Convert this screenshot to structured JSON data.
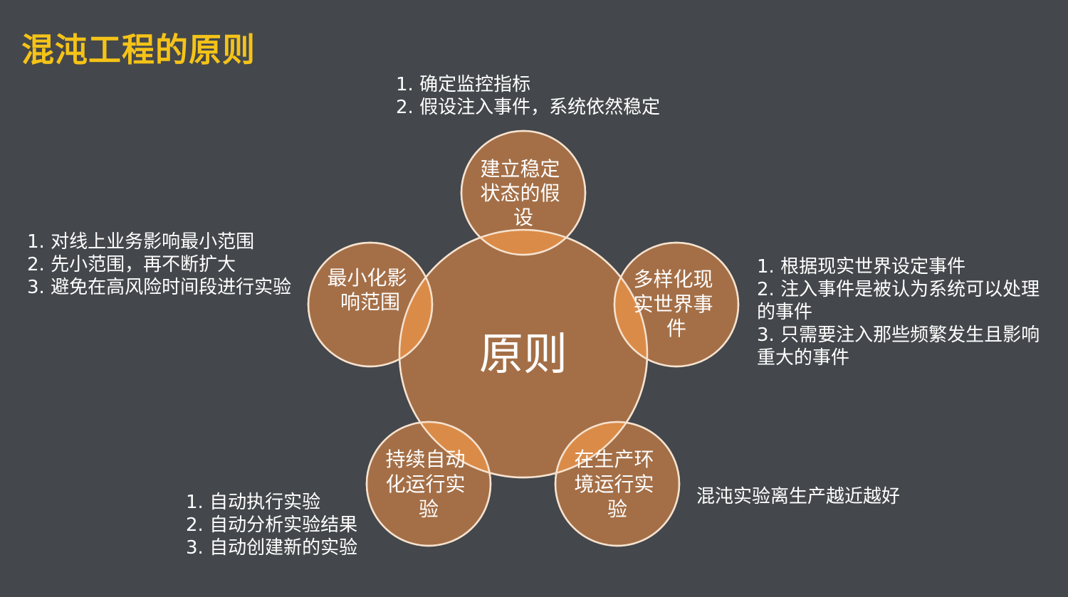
{
  "title": "混沌工程的原则",
  "center": {
    "label": "原则"
  },
  "colors": {
    "background": "#44474b",
    "title": "#f5c318",
    "circle_fill": "#a46f47",
    "circle_stroke": "#f6e2cf",
    "overlap_fill": "#db8b48",
    "text": "#ffffff"
  },
  "principles": [
    {
      "id": "steady-state",
      "label_lines": [
        "建立稳定",
        "状态的假",
        "设"
      ],
      "notes": [
        "1. 确定监控指标",
        "2. 假设注入事件，系统依然稳定"
      ]
    },
    {
      "id": "real-world-events",
      "label_lines": [
        "多样化现",
        "实世界事",
        "件"
      ],
      "notes": [
        "1. 根据现实世界设定事件",
        "2. 注入事件是被认为系统可以处理",
        "的事件",
        "3. 只需要注入那些频繁发生且影响",
        "重大的事件"
      ]
    },
    {
      "id": "production",
      "label_lines": [
        "在生产环",
        "境运行实",
        "验"
      ],
      "notes": [
        "混沌实验离生产越近越好"
      ]
    },
    {
      "id": "automation",
      "label_lines": [
        "持续自动",
        "化运行实",
        "验"
      ],
      "notes": [
        "1. 自动执行实验",
        "2. 自动分析实验结果",
        "3. 自动创建新的实验"
      ]
    },
    {
      "id": "blast-radius",
      "label_lines": [
        "最小化影",
        "响范围"
      ],
      "notes": [
        "1. 对线上业务影响最小范围",
        "2. 先小范围，再不断扩大",
        "3. 避免在高风险时间段进行实验"
      ]
    }
  ]
}
